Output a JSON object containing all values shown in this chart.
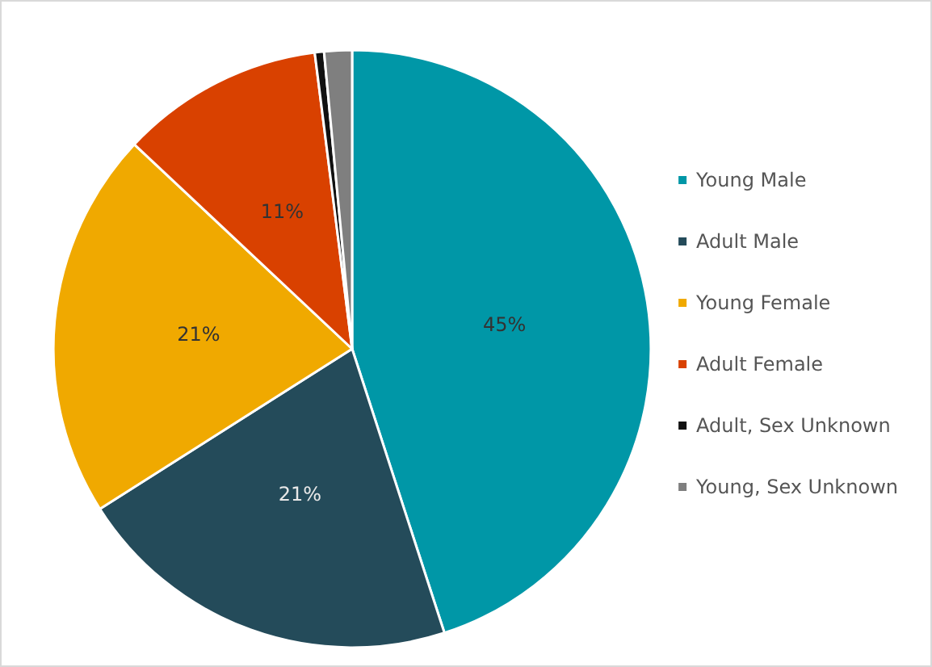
{
  "chart_data": {
    "type": "pie",
    "categories": [
      "Young Male",
      "Adult Male",
      "Young Female",
      "Adult Female",
      "Adult, Sex Unknown",
      "Young, Sex Unknown"
    ],
    "values": [
      45,
      21,
      21,
      11,
      0.5,
      1.5
    ],
    "colors": [
      "#0097a7",
      "#244b5a",
      "#f0a900",
      "#d94100",
      "#111111",
      "#7f7f7f"
    ],
    "value_labels": [
      "45%",
      "21%",
      "21%",
      "11%",
      null,
      null
    ],
    "legend": "right"
  }
}
